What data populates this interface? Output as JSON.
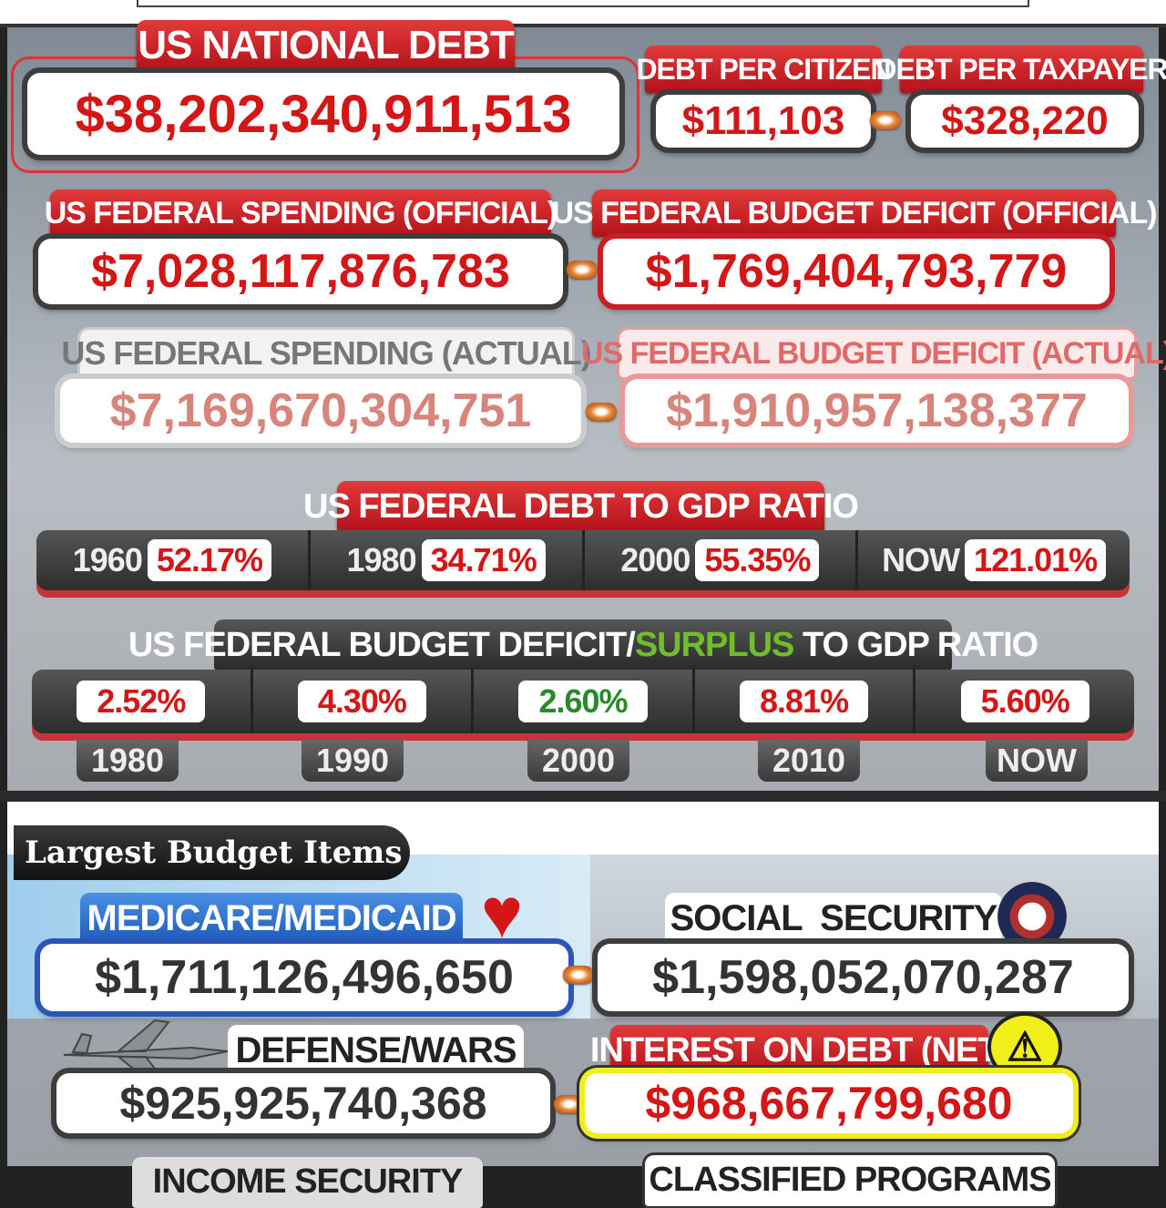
{
  "top": {
    "national_debt": {
      "label": "US NATIONAL DEBT",
      "value": "$38,202,340,911,513"
    },
    "debt_per_citizen": {
      "label": "DEBT PER CITIZEN",
      "value": "$111,103"
    },
    "debt_per_taxpayer": {
      "label": "DEBT PER TAXPAYER",
      "value": "$328,220"
    }
  },
  "spending_official": {
    "label": "US FEDERAL SPENDING (OFFICIAL)",
    "value": "$7,028,117,876,783"
  },
  "deficit_official": {
    "label": "US FEDERAL BUDGET DEFICIT (OFFICIAL)",
    "value": "$1,769,404,793,779"
  },
  "spending_actual": {
    "label": "US FEDERAL SPENDING (ACTUAL)",
    "value": "$7,169,670,304,751"
  },
  "deficit_actual": {
    "label": "US FEDERAL BUDGET DEFICIT (ACTUAL)",
    "value": "$1,910,957,138,377"
  },
  "debt_to_gdp": {
    "label": "US FEDERAL DEBT TO GDP RATIO",
    "items": [
      {
        "year": "1960",
        "value": "52.17%"
      },
      {
        "year": "1980",
        "value": "34.71%"
      },
      {
        "year": "2000",
        "value": "55.35%"
      },
      {
        "year": "NOW",
        "value": "121.01%"
      }
    ]
  },
  "deficit_to_gdp": {
    "label_part1": "US FEDERAL BUDGET DEFICIT/",
    "label_surplus": "SURPLUS",
    "label_part2": " TO GDP RATIO",
    "items": [
      {
        "year": "1980",
        "value": "2.52%",
        "color": "#d41616"
      },
      {
        "year": "1990",
        "value": "4.30%",
        "color": "#d41616"
      },
      {
        "year": "2000",
        "value": "2.60%",
        "color": "#2a8a2a"
      },
      {
        "year": "2010",
        "value": "8.81%",
        "color": "#d41616"
      },
      {
        "year": "NOW",
        "value": "5.60%",
        "color": "#d41616"
      }
    ]
  },
  "budget_items": {
    "title": "Largest Budget Items",
    "medicare": {
      "label": "MEDICARE/MEDICAID",
      "value": "$1,711,126,496,650"
    },
    "social_security": {
      "label": "SOCIAL  SECURITY",
      "value": "$1,598,052,070,287"
    },
    "defense": {
      "label": "DEFENSE/WARS",
      "value": "$925,925,740,368"
    },
    "interest": {
      "label": "INTEREST ON DEBT (NET)",
      "value": "$968,667,799,680"
    },
    "income_security": {
      "label": "INCOME SECURITY"
    },
    "classified": {
      "label": "CLASSIFIED PROGRAMS"
    }
  },
  "colors": {
    "accent_red": "#d41616",
    "surplus_green": "#6fbf2a",
    "medicare_blue": "#2b6fd1",
    "interest_yellow": "#f2ee1a"
  }
}
